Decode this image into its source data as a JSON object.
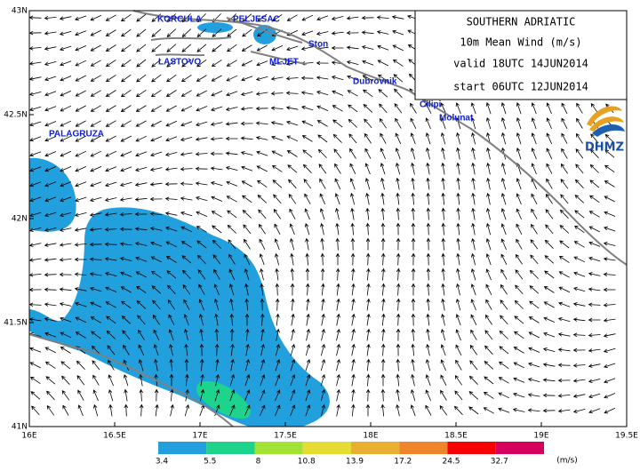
{
  "title_box": {
    "lines": [
      "SOUTHERN ADRIATIC",
      "10m  Mean  Wind  (m/s)",
      "valid  18UTC  14JUN2014",
      "start  06UTC  12JUN2014"
    ],
    "logo": "DHMZ"
  },
  "places": [
    "KORCULA",
    "PELJESAC",
    "Ston",
    "LASTOVO",
    "MLJET",
    "Dubrovnik",
    "Cilipi",
    "Molunat",
    "PALAGRUZA"
  ],
  "map": {
    "xlim": [
      16,
      19.5
    ],
    "ylim": [
      41,
      43
    ],
    "xticks": [
      {
        "value": 16,
        "label": "16E"
      },
      {
        "value": 16.5,
        "label": "16.5E"
      },
      {
        "value": 17,
        "label": "17E"
      },
      {
        "value": 17.5,
        "label": "17.5E"
      },
      {
        "value": 18,
        "label": "18E"
      },
      {
        "value": 18.5,
        "label": "18.5E"
      },
      {
        "value": 19,
        "label": "19E"
      },
      {
        "value": 19.5,
        "label": "19.5E"
      }
    ],
    "yticks": [
      {
        "value": 41,
        "label": "41N"
      },
      {
        "value": 41.5,
        "label": "41.5N"
      },
      {
        "value": 42,
        "label": "42N"
      },
      {
        "value": 42.5,
        "label": "42.5N"
      },
      {
        "value": 43,
        "label": "43N"
      }
    ]
  },
  "colorbar": {
    "unit": "(m/s)",
    "levels": [
      3.4,
      5.5,
      8,
      10.8,
      13.9,
      17.2,
      24.5,
      32.7
    ],
    "colors": [
      "#22a0de",
      "#1ed48c",
      "#a2e234",
      "#e6dc34",
      "#e8b030",
      "#f0842a",
      "#f80000",
      "#d4005c"
    ]
  }
}
